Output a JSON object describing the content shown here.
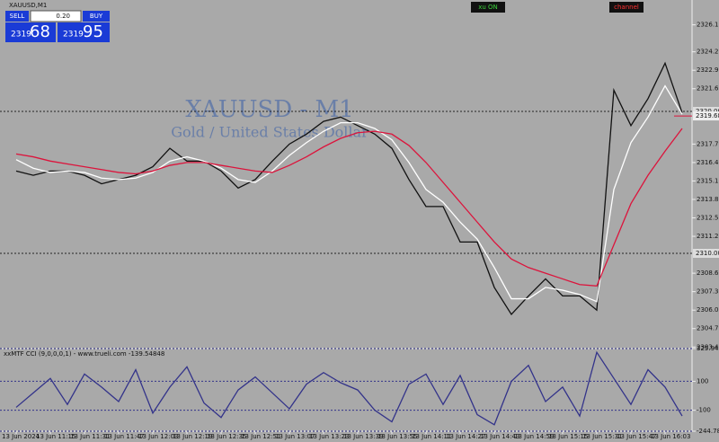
{
  "window_title": "XAUUSD,M1",
  "trade_panel": {
    "sell": "SELL",
    "buy": "BUY",
    "lot": "0.20",
    "sell_big": "2319",
    "sell_small": "68",
    "buy_big": "2319",
    "buy_small": "95"
  },
  "buttons": [
    "xu ON",
    "channel"
  ],
  "chart_data": [
    {
      "type": "line",
      "title": "XAUUSD - M1",
      "subtitle": "Gold / United States Dollar",
      "categories": [
        "13 Jun 2024",
        null,
        "13 Jun 11:15",
        null,
        "13 Jun 11:31",
        null,
        "13 Jun 11:47",
        null,
        "13 Jun 12:03",
        null,
        "13 Jun 12:19",
        null,
        "13 Jun 12:35",
        null,
        "13 Jun 12:51",
        null,
        "13 Jun 13:07",
        null,
        "13 Jun 13:23",
        null,
        "13 Jun 13:39",
        null,
        "13 Jun 13:55",
        null,
        "13 Jun 14:11",
        null,
        "13 Jun 14:27",
        null,
        "13 Jun 14:43",
        null,
        "13 Jun 14:59",
        null,
        "13 Jun 15:15",
        null,
        "13 Jun 15:31",
        null,
        "13 Jun 15:47",
        null,
        "13 Jun 16:03",
        null
      ],
      "series": [
        {
          "color": "#111111",
          "values": [
            2315.8,
            2315.5,
            2315.8,
            2315.8,
            2315.5,
            2314.9,
            2315.2,
            2315.5,
            2316.1,
            2317.4,
            2316.5,
            2316.5,
            2315.8,
            2314.6,
            2315.2,
            2316.5,
            2317.7,
            2318.4,
            2319.3,
            2319.6,
            2319.0,
            2318.4,
            2317.4,
            2315.2,
            2313.3,
            2313.3,
            2310.8,
            2310.8,
            2307.6,
            2305.7,
            2307.0,
            2308.2,
            2307.0,
            2307.0,
            2306.0,
            2321.5,
            2319.0,
            2320.9,
            2323.4,
            2319.9
          ]
        },
        {
          "color": "#ffffff",
          "values": [
            2316.6,
            2316.0,
            2315.7,
            2315.8,
            2315.7,
            2315.3,
            2315.2,
            2315.3,
            2315.7,
            2316.5,
            2316.8,
            2316.5,
            2316.0,
            2315.2,
            2315.0,
            2315.8,
            2316.9,
            2317.8,
            2318.6,
            2319.2,
            2319.2,
            2318.8,
            2318.0,
            2316.4,
            2314.5,
            2313.6,
            2312.2,
            2311.0,
            2309.0,
            2306.8,
            2306.8,
            2307.6,
            2307.4,
            2307.1,
            2306.6,
            2314.5,
            2317.8,
            2319.6,
            2321.8,
            2319.8
          ]
        },
        {
          "color": "#dc143c",
          "values": [
            2317.0,
            2316.8,
            2316.5,
            2316.3,
            2316.1,
            2315.9,
            2315.7,
            2315.6,
            2315.8,
            2316.2,
            2316.4,
            2316.4,
            2316.2,
            2316.0,
            2315.8,
            2315.7,
            2316.2,
            2316.8,
            2317.5,
            2318.1,
            2318.5,
            2318.6,
            2318.4,
            2317.6,
            2316.4,
            2315.0,
            2313.6,
            2312.2,
            2310.8,
            2309.6,
            2309.0,
            2308.6,
            2308.2,
            2307.8,
            2307.7,
            2310.6,
            2313.5,
            2315.5,
            2317.2,
            2318.8
          ]
        }
      ],
      "ylim": [
        2303.29,
        2327.85
      ],
      "yticks": [
        {
          "value": 2303.4,
          "label": "2303.40"
        },
        {
          "value": 2304.7,
          "label": "2304.70"
        },
        {
          "value": 2306,
          "label": "2306.00"
        },
        {
          "value": 2307.3,
          "label": "2307.30"
        },
        {
          "value": 2308.6,
          "label": "2308.60"
        },
        {
          "value": 2311.2,
          "label": "2311.20"
        },
        {
          "value": 2312.5,
          "label": "2312.50"
        },
        {
          "value": 2313.8,
          "label": "2313.80"
        },
        {
          "value": 2315.1,
          "label": "2315.10"
        },
        {
          "value": 2316.4,
          "label": "2316.40"
        },
        {
          "value": 2317.7,
          "label": "2317.70"
        },
        {
          "value": 2321.6,
          "label": "2321.60"
        },
        {
          "value": 2322.9,
          "label": "2322.90"
        },
        {
          "value": 2324.2,
          "label": "2324.20"
        },
        {
          "value": 2326.1,
          "label": "2326.10"
        }
      ],
      "levels": [
        {
          "value": 2320,
          "label": "2320.00"
        },
        {
          "value": 2310,
          "label": "2310.00"
        }
      ],
      "last": {
        "value": 2319.68,
        "label": "2319.68"
      }
    },
    {
      "type": "line",
      "title": "xxMTF CCI (9,0,0,0,1) - www.trueli.com -139.54848",
      "series": [
        {
          "color": "#33338a",
          "values": [
            -80,
            20,
            120,
            -60,
            150,
            60,
            -40,
            180,
            -120,
            60,
            200,
            -50,
            -150,
            40,
            130,
            20,
            -90,
            80,
            160,
            90,
            40,
            -100,
            -180,
            80,
            150,
            -60,
            140,
            -130,
            -200,
            100,
            210,
            -40,
            60,
            -140,
            300,
            120,
            -60,
            180,
            60,
            -139.54848
          ]
        }
      ],
      "ylim": [
        -244.7807,
        325.94194
      ],
      "yticks": [
        325.94194,
        100,
        -100,
        -244.7807
      ]
    }
  ]
}
